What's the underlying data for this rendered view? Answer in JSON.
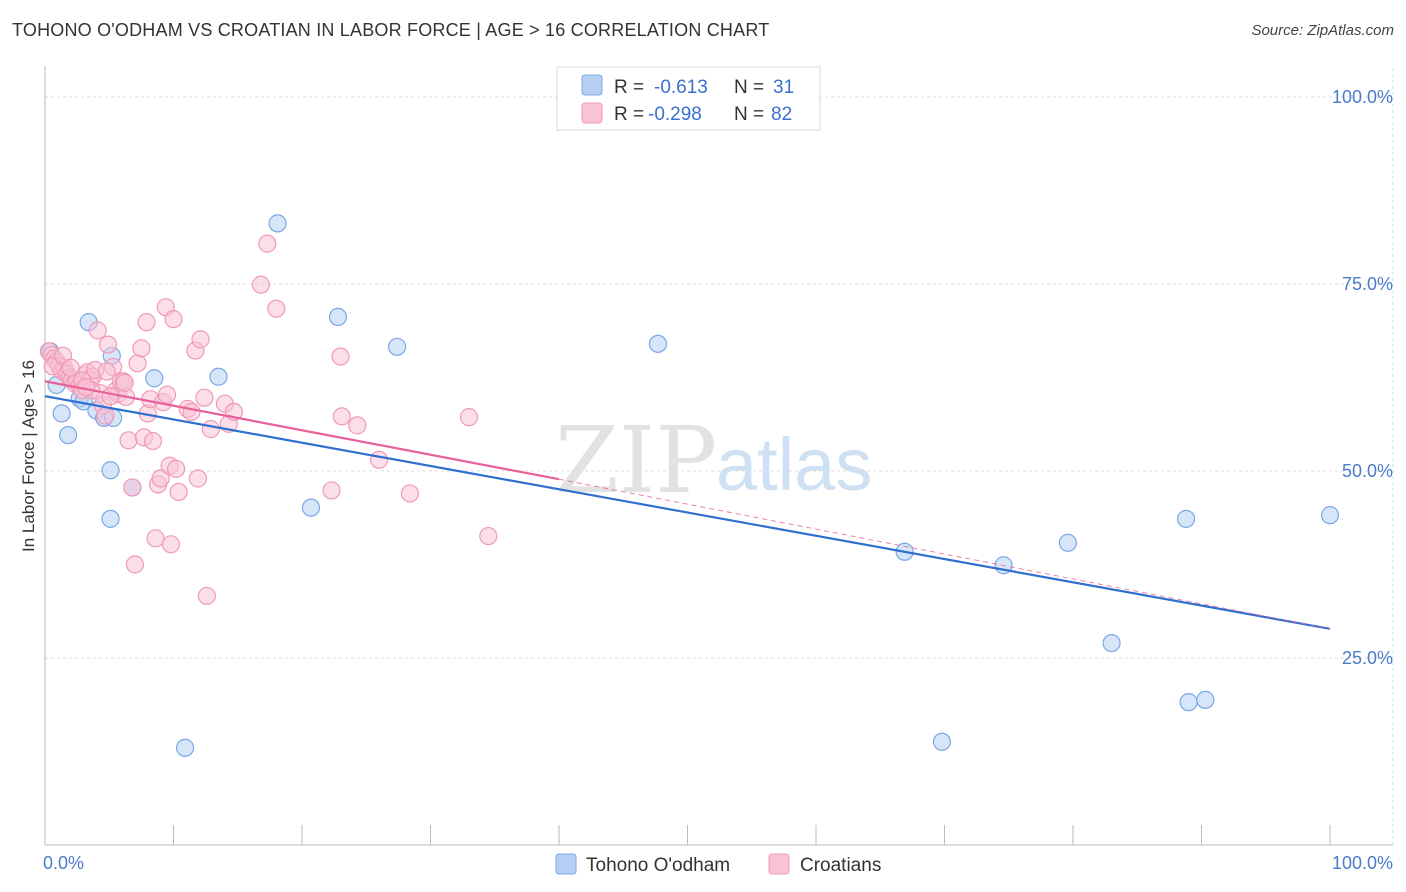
{
  "title": "TOHONO O'ODHAM VS CROATIAN IN LABOR FORCE | AGE > 16 CORRELATION CHART",
  "source": "Source: ZipAtlas.com",
  "chart_data": {
    "type": "scatter",
    "xlabel": "",
    "ylabel": "In Labor Force | Age > 16",
    "xlim": [
      0,
      100
    ],
    "ylim": [
      0,
      100
    ],
    "x_tick_labels": [
      "0.0%",
      "100.0%"
    ],
    "y_ticks": [
      25,
      50,
      75,
      100
    ],
    "y_tick_labels": [
      "25.0%",
      "50.0%",
      "75.0%",
      "100.0%"
    ],
    "watermark": {
      "zip": "ZIP",
      "atlas": "atlas"
    },
    "legend": {
      "r_label": "R =",
      "n_label": "N =",
      "entries": [
        {
          "r": "-0.613",
          "n": "31"
        },
        {
          "r": "-0.298",
          "n": "82"
        }
      ]
    },
    "series": [
      {
        "name": "Tohono O'odham",
        "color": "#7aa7e6",
        "fill": "#b7cff2",
        "line_color": "#2e6fd0",
        "trend": {
          "x": [
            0,
            100
          ],
          "y": [
            60.0,
            28.9
          ]
        },
        "points": [
          [
            0.4,
            66.0
          ],
          [
            0.9,
            61.5
          ],
          [
            1.3,
            57.7
          ],
          [
            1.8,
            54.8
          ],
          [
            3.4,
            69.9
          ],
          [
            2.7,
            59.7
          ],
          [
            3.0,
            59.3
          ],
          [
            4.0,
            58.1
          ],
          [
            4.6,
            57.1
          ],
          [
            5.3,
            57.1
          ],
          [
            5.2,
            65.4
          ],
          [
            5.1,
            50.1
          ],
          [
            5.1,
            43.6
          ],
          [
            6.8,
            47.8
          ],
          [
            8.5,
            62.4
          ],
          [
            10.9,
            13.0
          ],
          [
            13.5,
            62.6
          ],
          [
            18.1,
            83.1
          ],
          [
            20.7,
            45.1
          ],
          [
            22.8,
            70.6
          ],
          [
            27.4,
            66.6
          ],
          [
            47.7,
            67.0
          ],
          [
            66.9,
            39.2
          ],
          [
            69.8,
            13.8
          ],
          [
            74.6,
            37.4
          ],
          [
            79.6,
            40.4
          ],
          [
            83.0,
            27.0
          ],
          [
            88.8,
            43.6
          ],
          [
            89.0,
            19.1
          ],
          [
            90.3,
            19.4
          ],
          [
            100.0,
            44.1
          ]
        ]
      },
      {
        "name": "Croatians",
        "color": "#f09ab8",
        "fill": "#f8c3d5",
        "line_color": "#e8609a",
        "trend": {
          "x": [
            0,
            40
          ],
          "y": [
            62.0,
            48.9
          ]
        },
        "trend_dashed": {
          "x": [
            40,
            100
          ],
          "y": [
            48.9,
            28.9
          ]
        },
        "points": [
          [
            0.3,
            66.0
          ],
          [
            0.5,
            65.5
          ],
          [
            0.7,
            65.0
          ],
          [
            0.9,
            64.6
          ],
          [
            1.1,
            64.0
          ],
          [
            1.3,
            63.4
          ],
          [
            1.5,
            63.8
          ],
          [
            1.7,
            63.0
          ],
          [
            1.9,
            62.5
          ],
          [
            2.1,
            62.2
          ],
          [
            2.3,
            61.7
          ],
          [
            2.5,
            62.0
          ],
          [
            2.7,
            61.4
          ],
          [
            2.9,
            60.8
          ],
          [
            3.1,
            62.8
          ],
          [
            3.3,
            63.2
          ],
          [
            3.5,
            62.1
          ],
          [
            3.7,
            62.6
          ],
          [
            3.9,
            63.5
          ],
          [
            4.1,
            68.8
          ],
          [
            4.3,
            60.4
          ],
          [
            4.5,
            58.8
          ],
          [
            4.7,
            57.4
          ],
          [
            4.9,
            66.9
          ],
          [
            5.3,
            63.9
          ],
          [
            5.5,
            60.7
          ],
          [
            5.7,
            60.3
          ],
          [
            5.9,
            62.0
          ],
          [
            6.1,
            62.0
          ],
          [
            6.3,
            59.9
          ],
          [
            6.5,
            54.1
          ],
          [
            6.8,
            47.8
          ],
          [
            7.0,
            37.5
          ],
          [
            7.2,
            64.4
          ],
          [
            7.5,
            66.4
          ],
          [
            7.7,
            54.5
          ],
          [
            7.9,
            69.9
          ],
          [
            8.0,
            57.7
          ],
          [
            8.2,
            59.6
          ],
          [
            8.4,
            54.0
          ],
          [
            8.6,
            41.0
          ],
          [
            8.8,
            48.2
          ],
          [
            9.0,
            49.0
          ],
          [
            9.2,
            59.2
          ],
          [
            9.4,
            71.9
          ],
          [
            9.5,
            60.2
          ],
          [
            9.7,
            50.7
          ],
          [
            9.8,
            40.2
          ],
          [
            10.0,
            70.3
          ],
          [
            10.2,
            50.3
          ],
          [
            10.4,
            47.2
          ],
          [
            11.1,
            58.3
          ],
          [
            11.4,
            57.9
          ],
          [
            11.7,
            66.1
          ],
          [
            11.9,
            49.0
          ],
          [
            12.1,
            67.6
          ],
          [
            12.4,
            59.8
          ],
          [
            12.6,
            33.3
          ],
          [
            12.9,
            55.6
          ],
          [
            14.0,
            59.0
          ],
          [
            14.3,
            56.3
          ],
          [
            14.7,
            57.9
          ],
          [
            16.8,
            74.9
          ],
          [
            17.3,
            80.4
          ],
          [
            18.0,
            71.7
          ],
          [
            22.3,
            47.4
          ],
          [
            23.0,
            65.3
          ],
          [
            23.1,
            57.3
          ],
          [
            24.3,
            56.1
          ],
          [
            26.0,
            51.5
          ],
          [
            28.4,
            47.0
          ],
          [
            33.0,
            57.2
          ],
          [
            34.5,
            41.3
          ],
          [
            0.6,
            64.0
          ],
          [
            1.4,
            65.4
          ],
          [
            2.0,
            63.8
          ],
          [
            2.9,
            62.1
          ],
          [
            3.6,
            60.8
          ],
          [
            4.8,
            63.3
          ],
          [
            6.2,
            61.8
          ],
          [
            5.1,
            60.0
          ],
          [
            3.2,
            61.2
          ]
        ]
      }
    ],
    "bottom_legend": [
      "Tohono O'odham",
      "Croatians"
    ]
  }
}
